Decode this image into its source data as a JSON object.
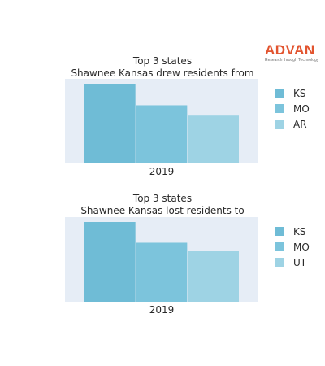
{
  "logo": {
    "name": "ADVAN",
    "tagline": "Research through Technology",
    "color": "#e2542f"
  },
  "chart_data": [
    {
      "type": "bar",
      "title": "Top 3 states",
      "subtitle": "Shawnee Kansas drew residents from",
      "categories": [
        "2019"
      ],
      "series": [
        {
          "name": "KS",
          "values": [
            100
          ],
          "color": "#6fbcd6"
        },
        {
          "name": "MO",
          "values": [
            73
          ],
          "color": "#7cc4dc"
        },
        {
          "name": "AR",
          "values": [
            60
          ],
          "color": "#9ed3e4"
        }
      ],
      "ylim": [
        0,
        100
      ],
      "grid": false,
      "legend": "right",
      "plot_background": "#e6edf6"
    },
    {
      "type": "bar",
      "title": "Top 3 states",
      "subtitle": "Shawnee Kansas lost residents to",
      "categories": [
        "2019"
      ],
      "series": [
        {
          "name": "KS",
          "values": [
            100
          ],
          "color": "#6fbcd6"
        },
        {
          "name": "MO",
          "values": [
            74
          ],
          "color": "#7cc4dc"
        },
        {
          "name": "UT",
          "values": [
            64
          ],
          "color": "#9ed3e4"
        }
      ],
      "ylim": [
        0,
        100
      ],
      "grid": false,
      "legend": "right",
      "plot_background": "#e6edf6"
    }
  ]
}
